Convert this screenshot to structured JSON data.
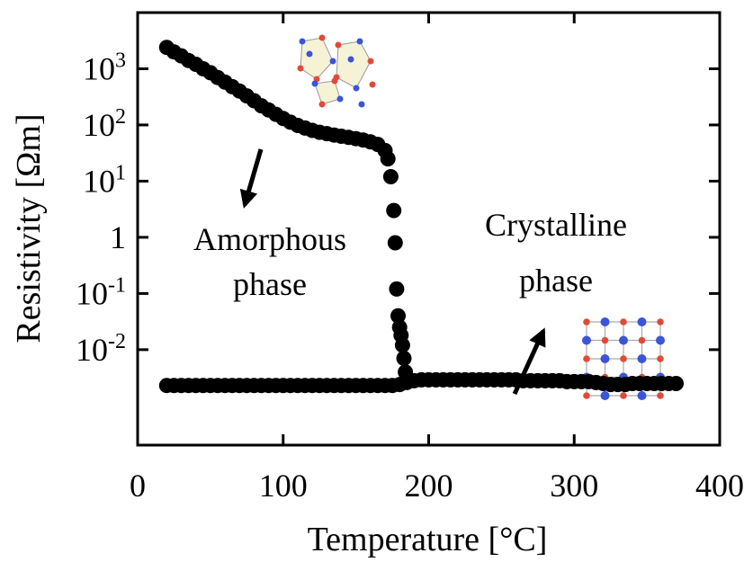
{
  "chart_data": {
    "type": "scatter",
    "title": "",
    "xlabel": "Temperature [°C]",
    "ylabel": "Resistivity [Ωm]",
    "xlim": [
      0,
      400
    ],
    "ylim": [
      0.0002,
      10000
    ],
    "y_scale": "log",
    "grid": false,
    "x_ticks": [
      {
        "value": 0,
        "label": "0"
      },
      {
        "value": 100,
        "label": "100"
      },
      {
        "value": 200,
        "label": "200"
      },
      {
        "value": 300,
        "label": "300"
      },
      {
        "value": 400,
        "label": "400"
      }
    ],
    "y_ticks": [
      {
        "value": 1000,
        "base": "10",
        "exp": "3"
      },
      {
        "value": 100,
        "base": "10",
        "exp": "2"
      },
      {
        "value": 10,
        "base": "10",
        "exp": "1"
      },
      {
        "value": 1,
        "base": "1",
        "exp": ""
      },
      {
        "value": 0.1,
        "base": "10",
        "exp": "-1"
      },
      {
        "value": 0.01,
        "base": "10",
        "exp": "-2"
      }
    ],
    "annotations": [
      {
        "lines": [
          "Amorphous",
          "phase"
        ]
      },
      {
        "lines": [
          "Crystalline",
          "phase"
        ]
      }
    ],
    "marker_color": "#000000",
    "series": [
      {
        "x": [
          20,
          25,
          30,
          35,
          40,
          45,
          50,
          55,
          60,
          65,
          70,
          75,
          80,
          85,
          90,
          95,
          100,
          105,
          110,
          115,
          120,
          125,
          130,
          135,
          140,
          145,
          150,
          155,
          160,
          165,
          170,
          172,
          174,
          176,
          177,
          178,
          179,
          180,
          181,
          182,
          183,
          184,
          185
        ],
        "y": [
          2400,
          2000,
          1700,
          1400,
          1200,
          1000,
          850,
          700,
          580,
          480,
          400,
          330,
          270,
          220,
          185,
          155,
          130,
          112,
          98,
          88,
          80,
          74,
          70,
          66,
          63,
          60,
          57,
          54,
          50,
          45,
          35,
          25,
          12,
          3,
          0.8,
          0.12,
          0.04,
          0.025,
          0.018,
          0.012,
          0.007,
          0.004,
          0.003
        ]
      },
      {
        "x": [
          20,
          25,
          30,
          35,
          40,
          45,
          50,
          55,
          60,
          65,
          70,
          75,
          80,
          85,
          90,
          95,
          100,
          105,
          110,
          115,
          120,
          125,
          130,
          135,
          140,
          145,
          150,
          155,
          160,
          165,
          170,
          175,
          180,
          185,
          190,
          195,
          200,
          205,
          210,
          215,
          220,
          225,
          230,
          235,
          240,
          245,
          250,
          255,
          260,
          265,
          270,
          275,
          280,
          285,
          290,
          295,
          300,
          305,
          310,
          315,
          320,
          325,
          330,
          335,
          340,
          345,
          350,
          355,
          360,
          365,
          370
        ],
        "y": [
          0.0023,
          0.0023,
          0.0023,
          0.0023,
          0.0023,
          0.0023,
          0.0023,
          0.0023,
          0.0023,
          0.0023,
          0.0023,
          0.0023,
          0.0023,
          0.0023,
          0.0023,
          0.0023,
          0.0023,
          0.0023,
          0.0023,
          0.0023,
          0.0023,
          0.0023,
          0.0023,
          0.0023,
          0.0023,
          0.0023,
          0.0023,
          0.0023,
          0.0023,
          0.0023,
          0.0023,
          0.0023,
          0.0024,
          0.0026,
          0.0028,
          0.0029,
          0.0029,
          0.0029,
          0.0029,
          0.0029,
          0.0029,
          0.0029,
          0.0029,
          0.0029,
          0.0029,
          0.0029,
          0.0029,
          0.0029,
          0.0029,
          0.0028,
          0.0028,
          0.0028,
          0.0028,
          0.0028,
          0.0028,
          0.0027,
          0.0027,
          0.0027,
          0.0027,
          0.0026,
          0.0025,
          0.0024,
          0.0024,
          0.0024,
          0.0025,
          0.0025,
          0.0025,
          0.0025,
          0.0025,
          0.0025,
          0.0025
        ]
      }
    ]
  }
}
